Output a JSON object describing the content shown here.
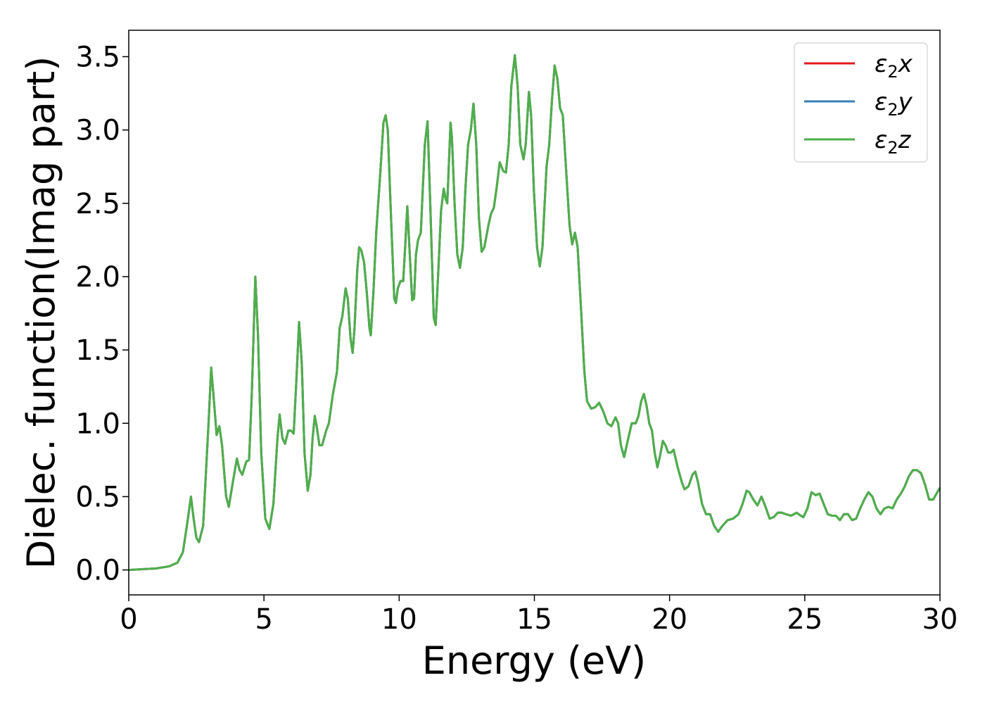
{
  "chart_data": {
    "type": "line",
    "title": "",
    "xlabel": "Energy (eV)",
    "ylabel": "Dielec. function(Imag part)",
    "xlim": [
      0,
      30
    ],
    "ylim": [
      -0.17,
      3.68
    ],
    "x_ticks": [
      "0",
      "5",
      "10",
      "15",
      "20",
      "25",
      "30"
    ],
    "x_tick_values": [
      0,
      5,
      10,
      15,
      20,
      25,
      30
    ],
    "y_ticks": [
      "0.0",
      "0.5",
      "1.0",
      "1.5",
      "2.0",
      "2.5",
      "3.0",
      "3.5"
    ],
    "y_tick_values": [
      0,
      0.5,
      1.0,
      1.5,
      2.0,
      2.5,
      3.0,
      3.5
    ],
    "grid": false,
    "legend_position": "top-right",
    "series": [
      {
        "name": "ε₂x",
        "legend_base": "ε",
        "legend_sub": "2",
        "legend_suffix": "x",
        "color": "#e41a1c"
      },
      {
        "name": "ε₂y",
        "legend_base": "ε",
        "legend_sub": "2",
        "legend_suffix": "y",
        "color": "#377eb8"
      },
      {
        "name": "ε₂z",
        "legend_base": "ε",
        "legend_sub": "2",
        "legend_suffix": "z",
        "color": "#4daf4a"
      }
    ],
    "points": [
      [
        0,
        0.0
      ],
      [
        0.5,
        0.005
      ],
      [
        1.0,
        0.01
      ],
      [
        1.5,
        0.025
      ],
      [
        1.8,
        0.05
      ],
      [
        2.0,
        0.12
      ],
      [
        2.15,
        0.3
      ],
      [
        2.3,
        0.5
      ],
      [
        2.4,
        0.35
      ],
      [
        2.5,
        0.22
      ],
      [
        2.6,
        0.19
      ],
      [
        2.75,
        0.3
      ],
      [
        2.95,
        1.0
      ],
      [
        3.05,
        1.38
      ],
      [
        3.15,
        1.15
      ],
      [
        3.25,
        0.92
      ],
      [
        3.35,
        0.98
      ],
      [
        3.45,
        0.85
      ],
      [
        3.6,
        0.5
      ],
      [
        3.7,
        0.43
      ],
      [
        3.85,
        0.6
      ],
      [
        4.0,
        0.76
      ],
      [
        4.1,
        0.68
      ],
      [
        4.2,
        0.65
      ],
      [
        4.35,
        0.74
      ],
      [
        4.45,
        0.75
      ],
      [
        4.55,
        1.2
      ],
      [
        4.68,
        2.0
      ],
      [
        4.78,
        1.6
      ],
      [
        4.9,
        0.8
      ],
      [
        5.05,
        0.35
      ],
      [
        5.2,
        0.28
      ],
      [
        5.35,
        0.45
      ],
      [
        5.5,
        0.9
      ],
      [
        5.58,
        1.06
      ],
      [
        5.68,
        0.9
      ],
      [
        5.78,
        0.86
      ],
      [
        5.9,
        0.95
      ],
      [
        6.0,
        0.95
      ],
      [
        6.1,
        0.93
      ],
      [
        6.2,
        1.3
      ],
      [
        6.3,
        1.69
      ],
      [
        6.4,
        1.4
      ],
      [
        6.5,
        0.8
      ],
      [
        6.62,
        0.54
      ],
      [
        6.72,
        0.65
      ],
      [
        6.8,
        0.9
      ],
      [
        6.88,
        1.05
      ],
      [
        6.95,
        0.98
      ],
      [
        7.05,
        0.85
      ],
      [
        7.15,
        0.85
      ],
      [
        7.3,
        0.95
      ],
      [
        7.4,
        1.0
      ],
      [
        7.55,
        1.2
      ],
      [
        7.7,
        1.35
      ],
      [
        7.8,
        1.65
      ],
      [
        7.9,
        1.73
      ],
      [
        8.02,
        1.92
      ],
      [
        8.1,
        1.85
      ],
      [
        8.2,
        1.58
      ],
      [
        8.28,
        1.48
      ],
      [
        8.35,
        1.65
      ],
      [
        8.45,
        2.05
      ],
      [
        8.52,
        2.2
      ],
      [
        8.6,
        2.18
      ],
      [
        8.7,
        2.1
      ],
      [
        8.8,
        1.9
      ],
      [
        8.9,
        1.65
      ],
      [
        8.95,
        1.6
      ],
      [
        9.05,
        1.9
      ],
      [
        9.15,
        2.3
      ],
      [
        9.3,
        2.7
      ],
      [
        9.42,
        3.05
      ],
      [
        9.5,
        3.1
      ],
      [
        9.58,
        3.0
      ],
      [
        9.7,
        2.4
      ],
      [
        9.82,
        1.85
      ],
      [
        9.88,
        1.82
      ],
      [
        9.95,
        1.92
      ],
      [
        10.05,
        1.97
      ],
      [
        10.15,
        1.97
      ],
      [
        10.22,
        2.2
      ],
      [
        10.3,
        2.48
      ],
      [
        10.38,
        2.2
      ],
      [
        10.48,
        1.84
      ],
      [
        10.55,
        1.85
      ],
      [
        10.62,
        2.15
      ],
      [
        10.7,
        2.25
      ],
      [
        10.8,
        2.3
      ],
      [
        10.95,
        2.9
      ],
      [
        11.05,
        3.06
      ],
      [
        11.15,
        2.5
      ],
      [
        11.28,
        1.72
      ],
      [
        11.35,
        1.67
      ],
      [
        11.45,
        2.05
      ],
      [
        11.55,
        2.45
      ],
      [
        11.65,
        2.6
      ],
      [
        11.72,
        2.53
      ],
      [
        11.78,
        2.5
      ],
      [
        11.9,
        3.05
      ],
      [
        11.95,
        2.95
      ],
      [
        12.05,
        2.5
      ],
      [
        12.15,
        2.15
      ],
      [
        12.25,
        2.06
      ],
      [
        12.35,
        2.2
      ],
      [
        12.45,
        2.6
      ],
      [
        12.55,
        2.9
      ],
      [
        12.65,
        3.0
      ],
      [
        12.75,
        3.18
      ],
      [
        12.85,
        2.9
      ],
      [
        12.95,
        2.4
      ],
      [
        13.05,
        2.17
      ],
      [
        13.15,
        2.2
      ],
      [
        13.3,
        2.35
      ],
      [
        13.4,
        2.43
      ],
      [
        13.5,
        2.47
      ],
      [
        13.6,
        2.6
      ],
      [
        13.72,
        2.78
      ],
      [
        13.85,
        2.72
      ],
      [
        13.95,
        2.71
      ],
      [
        14.05,
        2.9
      ],
      [
        14.15,
        3.3
      ],
      [
        14.28,
        3.51
      ],
      [
        14.38,
        3.3
      ],
      [
        14.48,
        2.9
      ],
      [
        14.6,
        2.8
      ],
      [
        14.68,
        2.9
      ],
      [
        14.8,
        3.26
      ],
      [
        14.88,
        3.1
      ],
      [
        14.98,
        2.6
      ],
      [
        15.1,
        2.2
      ],
      [
        15.2,
        2.07
      ],
      [
        15.3,
        2.2
      ],
      [
        15.45,
        2.75
      ],
      [
        15.55,
        2.9
      ],
      [
        15.65,
        3.2
      ],
      [
        15.75,
        3.44
      ],
      [
        15.85,
        3.35
      ],
      [
        15.95,
        3.15
      ],
      [
        16.05,
        3.1
      ],
      [
        16.15,
        2.8
      ],
      [
        16.3,
        2.35
      ],
      [
        16.4,
        2.22
      ],
      [
        16.5,
        2.3
      ],
      [
        16.6,
        2.2
      ],
      [
        16.72,
        1.8
      ],
      [
        16.85,
        1.35
      ],
      [
        16.95,
        1.15
      ],
      [
        17.1,
        1.1
      ],
      [
        17.25,
        1.11
      ],
      [
        17.4,
        1.14
      ],
      [
        17.55,
        1.08
      ],
      [
        17.7,
        1.0
      ],
      [
        17.85,
        0.98
      ],
      [
        18.0,
        1.04
      ],
      [
        18.1,
        1.0
      ],
      [
        18.2,
        0.85
      ],
      [
        18.32,
        0.77
      ],
      [
        18.45,
        0.88
      ],
      [
        18.6,
        1.0
      ],
      [
        18.75,
        1.0
      ],
      [
        18.85,
        1.05
      ],
      [
        18.95,
        1.15
      ],
      [
        19.05,
        1.2
      ],
      [
        19.15,
        1.12
      ],
      [
        19.25,
        1.0
      ],
      [
        19.35,
        0.95
      ],
      [
        19.45,
        0.8
      ],
      [
        19.55,
        0.7
      ],
      [
        19.65,
        0.78
      ],
      [
        19.75,
        0.88
      ],
      [
        19.85,
        0.85
      ],
      [
        19.95,
        0.8
      ],
      [
        20.05,
        0.8
      ],
      [
        20.15,
        0.82
      ],
      [
        20.3,
        0.7
      ],
      [
        20.45,
        0.6
      ],
      [
        20.55,
        0.55
      ],
      [
        20.7,
        0.57
      ],
      [
        20.85,
        0.65
      ],
      [
        20.95,
        0.67
      ],
      [
        21.05,
        0.6
      ],
      [
        21.2,
        0.45
      ],
      [
        21.35,
        0.38
      ],
      [
        21.5,
        0.38
      ],
      [
        21.65,
        0.3
      ],
      [
        21.8,
        0.26
      ],
      [
        21.95,
        0.3
      ],
      [
        22.15,
        0.34
      ],
      [
        22.35,
        0.35
      ],
      [
        22.55,
        0.38
      ],
      [
        22.7,
        0.45
      ],
      [
        22.85,
        0.54
      ],
      [
        22.95,
        0.53
      ],
      [
        23.1,
        0.48
      ],
      [
        23.25,
        0.44
      ],
      [
        23.4,
        0.5
      ],
      [
        23.55,
        0.43
      ],
      [
        23.7,
        0.35
      ],
      [
        23.85,
        0.36
      ],
      [
        24.0,
        0.39
      ],
      [
        24.15,
        0.39
      ],
      [
        24.3,
        0.38
      ],
      [
        24.5,
        0.37
      ],
      [
        24.7,
        0.39
      ],
      [
        24.85,
        0.37
      ],
      [
        24.95,
        0.36
      ],
      [
        25.1,
        0.42
      ],
      [
        25.25,
        0.53
      ],
      [
        25.4,
        0.51
      ],
      [
        25.55,
        0.52
      ],
      [
        25.7,
        0.45
      ],
      [
        25.85,
        0.38
      ],
      [
        26.0,
        0.37
      ],
      [
        26.15,
        0.37
      ],
      [
        26.3,
        0.34
      ],
      [
        26.45,
        0.38
      ],
      [
        26.6,
        0.38
      ],
      [
        26.75,
        0.34
      ],
      [
        26.9,
        0.35
      ],
      [
        27.05,
        0.42
      ],
      [
        27.2,
        0.48
      ],
      [
        27.35,
        0.53
      ],
      [
        27.5,
        0.5
      ],
      [
        27.65,
        0.42
      ],
      [
        27.8,
        0.38
      ],
      [
        27.95,
        0.42
      ],
      [
        28.1,
        0.43
      ],
      [
        28.25,
        0.42
      ],
      [
        28.4,
        0.48
      ],
      [
        28.55,
        0.52
      ],
      [
        28.7,
        0.57
      ],
      [
        28.85,
        0.64
      ],
      [
        29.0,
        0.68
      ],
      [
        29.15,
        0.68
      ],
      [
        29.3,
        0.66
      ],
      [
        29.45,
        0.58
      ],
      [
        29.6,
        0.48
      ],
      [
        29.75,
        0.48
      ],
      [
        29.9,
        0.53
      ],
      [
        30.0,
        0.56
      ]
    ]
  }
}
